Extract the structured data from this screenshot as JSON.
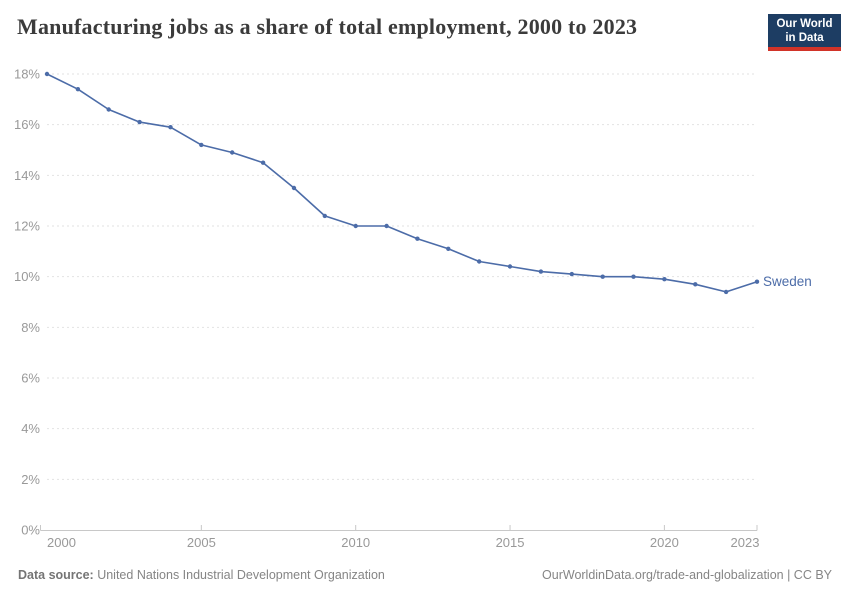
{
  "header": {
    "title": "Manufacturing jobs as a share of total employment, 2000 to 2023",
    "logo": {
      "line1": "Our World",
      "line2": "in Data"
    }
  },
  "chart_data": {
    "type": "line",
    "title": "Manufacturing jobs as a share of total employment, 2000 to 2023",
    "x": [
      2000,
      2001,
      2002,
      2003,
      2004,
      2005,
      2006,
      2007,
      2008,
      2009,
      2010,
      2011,
      2012,
      2013,
      2014,
      2015,
      2016,
      2017,
      2018,
      2019,
      2020,
      2021,
      2022,
      2023
    ],
    "series": [
      {
        "name": "Sweden",
        "values": [
          18.0,
          17.4,
          16.6,
          16.1,
          15.9,
          15.2,
          14.9,
          14.5,
          13.5,
          12.4,
          12.0,
          12.0,
          11.5,
          11.1,
          10.6,
          10.4,
          10.2,
          10.1,
          10.0,
          10.0,
          9.9,
          9.7,
          9.4,
          9.8
        ]
      }
    ],
    "ylim": [
      0,
      18
    ],
    "ytick_step": 2,
    "ytick_labels": [
      "0%",
      "2%",
      "4%",
      "6%",
      "8%",
      "10%",
      "12%",
      "14%",
      "16%",
      "18%"
    ],
    "xticks": [
      2000,
      2005,
      2010,
      2015,
      2020,
      2023
    ],
    "xtick_labels": [
      "2000",
      "2005",
      "2010",
      "2015",
      "2020",
      "2023"
    ],
    "grid": "horizontal-dashed",
    "legend": "end-of-line-label",
    "end_label": "Sweden"
  },
  "colors": {
    "line": "#4C6CA8",
    "grid": "#e2e2e2",
    "axis": "#c8c8c8",
    "tick_text": "#999999",
    "logo_navy": "#1d3d63",
    "logo_red": "#d13328"
  },
  "footer": {
    "datasource_label": "Data source:",
    "datasource_value": " United Nations Industrial Development Organization",
    "attribution": "OurWorldinData.org/trade-and-globalization | CC BY"
  }
}
